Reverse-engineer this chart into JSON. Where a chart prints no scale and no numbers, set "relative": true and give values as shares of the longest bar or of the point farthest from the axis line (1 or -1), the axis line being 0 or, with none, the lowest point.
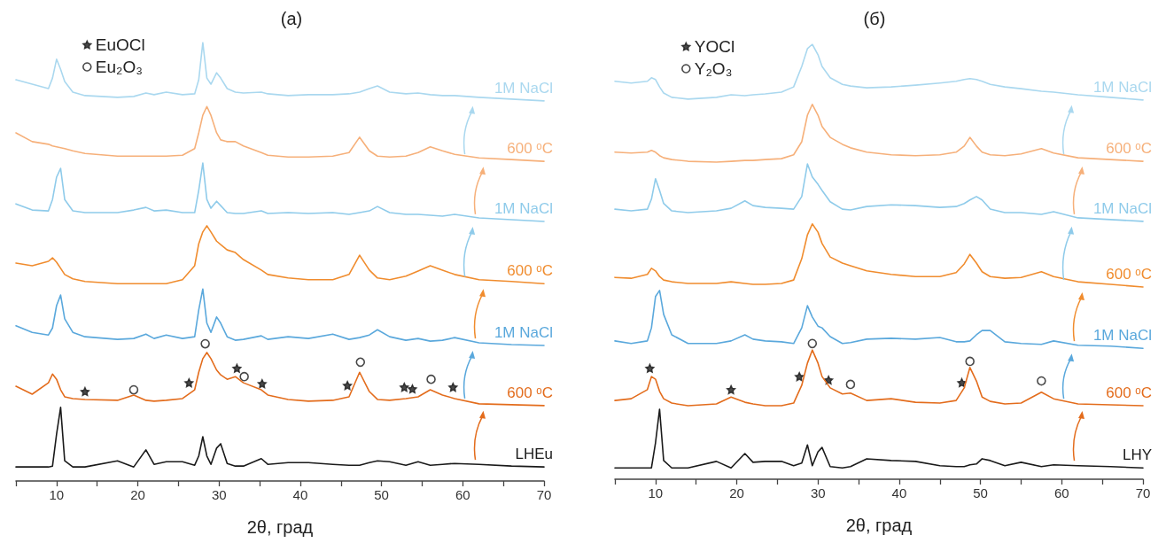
{
  "chart_data": [
    {
      "type": "line",
      "title": "(a)",
      "xlabel": "2θ, град",
      "relative": true,
      "xlim": [
        5,
        70
      ],
      "xticks": [
        {
          "value": 5,
          "label": null
        },
        10,
        {
          "value": 15,
          "label": null
        },
        20,
        {
          "value": 25,
          "label": null
        },
        30,
        {
          "value": 35,
          "label": null
        },
        40,
        {
          "value": 45,
          "label": null
        },
        50,
        {
          "value": 55,
          "label": null
        },
        60,
        {
          "value": 65,
          "label": null
        },
        70
      ],
      "grid": false,
      "legend": "top left",
      "x": [
        5,
        7,
        9,
        9.5,
        10,
        10.5,
        11,
        12,
        13.5,
        17.5,
        19.5,
        21,
        22,
        23.5,
        25.5,
        27,
        27.5,
        28,
        28.5,
        29,
        29.7,
        30.2,
        31,
        32,
        33,
        35.2,
        36,
        38.5,
        41,
        44,
        46,
        47.3,
        48.5,
        49.5,
        51,
        53,
        54.5,
        56,
        57.5,
        59,
        62,
        66,
        70
      ],
      "series": [
        {
          "name": "LHEu",
          "color": "#1a1a1a",
          "values": [
            0.032,
            0.032,
            0.032,
            0.034,
            0.107,
            0.168,
            0.046,
            0.032,
            0.032,
            0.046,
            0.032,
            0.071,
            0.038,
            0.044,
            0.044,
            0.036,
            0.057,
            0.101,
            0.057,
            0.038,
            0.075,
            0.085,
            0.04,
            0.034,
            0.034,
            0.051,
            0.038,
            0.042,
            0.042,
            0.038,
            0.036,
            0.036,
            0.042,
            0.046,
            0.044,
            0.036,
            0.044,
            0.036,
            0.038,
            0.04,
            0.038,
            0.034,
            0.032
          ]
        },
        {
          "name": "600 ᵒC",
          "color": "#e36c1c",
          "values": [
            0.216,
            0.198,
            0.224,
            0.244,
            0.232,
            0.208,
            0.192,
            0.188,
            0.186,
            0.184,
            0.196,
            0.184,
            0.182,
            0.184,
            0.188,
            0.208,
            0.248,
            0.279,
            0.293,
            0.279,
            0.253,
            0.242,
            0.232,
            0.238,
            0.224,
            0.208,
            0.196,
            0.186,
            0.182,
            0.184,
            0.192,
            0.248,
            0.204,
            0.186,
            0.184,
            0.188,
            0.192,
            0.208,
            0.196,
            0.188,
            0.176,
            0.174,
            0.172
          ]
        },
        {
          "name": "1M NaCl",
          "color": "#5aa8dc",
          "values": [
            0.354,
            0.339,
            0.333,
            0.349,
            0.4,
            0.424,
            0.37,
            0.339,
            0.329,
            0.323,
            0.325,
            0.335,
            0.325,
            0.333,
            0.325,
            0.329,
            0.39,
            0.438,
            0.36,
            0.339,
            0.374,
            0.36,
            0.329,
            0.321,
            0.323,
            0.331,
            0.323,
            0.329,
            0.325,
            0.335,
            0.323,
            0.327,
            0.333,
            0.345,
            0.329,
            0.321,
            0.325,
            0.319,
            0.321,
            0.327,
            0.315,
            0.311,
            0.309
          ]
        },
        {
          "name": "600 ᵒC",
          "color": "#f08c2e",
          "values": [
            0.497,
            0.491,
            0.501,
            0.509,
            0.499,
            0.485,
            0.471,
            0.461,
            0.455,
            0.45,
            0.45,
            0.45,
            0.45,
            0.45,
            0.459,
            0.491,
            0.541,
            0.568,
            0.582,
            0.568,
            0.547,
            0.539,
            0.527,
            0.521,
            0.505,
            0.481,
            0.471,
            0.463,
            0.459,
            0.459,
            0.471,
            0.515,
            0.481,
            0.463,
            0.459,
            0.467,
            0.479,
            0.491,
            0.481,
            0.471,
            0.459,
            0.455,
            0.45
          ]
        },
        {
          "name": "1M NaCl",
          "color": "#8fcbea",
          "values": [
            0.632,
            0.618,
            0.616,
            0.642,
            0.693,
            0.713,
            0.642,
            0.616,
            0.612,
            0.612,
            0.618,
            0.624,
            0.616,
            0.618,
            0.612,
            0.612,
            0.663,
            0.725,
            0.642,
            0.622,
            0.638,
            0.628,
            0.612,
            0.61,
            0.61,
            0.616,
            0.61,
            0.612,
            0.61,
            0.612,
            0.608,
            0.612,
            0.616,
            0.626,
            0.612,
            0.608,
            0.608,
            0.606,
            0.604,
            0.608,
            0.6,
            0.596,
            0.592
          ]
        },
        {
          "name": "600 ᵒC",
          "color": "#f6b07a",
          "values": [
            0.794,
            0.774,
            0.768,
            0.764,
            0.762,
            0.76,
            0.758,
            0.753,
            0.747,
            0.741,
            0.741,
            0.741,
            0.741,
            0.741,
            0.743,
            0.758,
            0.794,
            0.834,
            0.854,
            0.834,
            0.794,
            0.778,
            0.774,
            0.774,
            0.764,
            0.749,
            0.743,
            0.739,
            0.739,
            0.741,
            0.749,
            0.784,
            0.753,
            0.741,
            0.739,
            0.741,
            0.749,
            0.762,
            0.753,
            0.745,
            0.737,
            0.733,
            0.729
          ]
        },
        {
          "name": "1M NaCl",
          "color": "#aad8ef",
          "values": [
            0.915,
            0.905,
            0.895,
            0.919,
            0.962,
            0.939,
            0.911,
            0.887,
            0.879,
            0.875,
            0.877,
            0.885,
            0.881,
            0.887,
            0.881,
            0.883,
            0.915,
            1,
            0.919,
            0.905,
            0.931,
            0.919,
            0.895,
            0.887,
            0.885,
            0.887,
            0.883,
            0.879,
            0.881,
            0.881,
            0.883,
            0.887,
            0.895,
            0.901,
            0.887,
            0.883,
            0.885,
            0.881,
            0.879,
            0.879,
            0.875,
            0.871,
            0.867
          ]
        },
        {
          "name": "EuOCl",
          "type": "scatter",
          "marker": "star",
          "color": "#1a1a1a",
          "x": [
            13.5,
            26.3,
            32.2,
            35.3,
            45.8,
            52.8,
            53.8,
            58.8
          ],
          "values": [
            0.204,
            0.224,
            0.257,
            0.222,
            0.218,
            0.214,
            0.21,
            0.214
          ]
        },
        {
          "name": "Eu₂O₃",
          "type": "scatter",
          "marker": "circle",
          "color": "#1a1a1a",
          "x": [
            19.5,
            28.3,
            33.1,
            47.4,
            56.1
          ],
          "values": [
            0.208,
            0.313,
            0.238,
            0.271,
            0.232
          ]
        }
      ]
    },
    {
      "type": "line",
      "title": "(б)",
      "xlabel": "2θ, град",
      "relative": true,
      "xlim": [
        5,
        70
      ],
      "xticks": [
        {
          "value": 5,
          "label": null
        },
        10,
        {
          "value": 15,
          "label": null
        },
        20,
        {
          "value": 25,
          "label": null
        },
        30,
        {
          "value": 35,
          "label": null
        },
        40,
        {
          "value": 45,
          "label": null
        },
        50,
        {
          "value": 55,
          "label": null
        },
        60,
        {
          "value": 65,
          "label": null
        },
        70
      ],
      "grid": false,
      "legend": "top left",
      "x": [
        5,
        7,
        9,
        9.5,
        10,
        10.5,
        11,
        12,
        14,
        17.5,
        19.3,
        21,
        22,
        23.5,
        25.5,
        27,
        28,
        28.7,
        29.3,
        30,
        30.5,
        31.5,
        33,
        34,
        36,
        39,
        42,
        45,
        47,
        48,
        48.7,
        49.5,
        50.2,
        51.2,
        53,
        55,
        57.5,
        59,
        62,
        66,
        70
      ],
      "series": [
        {
          "name": "LHY",
          "color": "#1a1a1a",
          "values": [
            0.026,
            0.026,
            0.026,
            0.026,
            0.084,
            0.161,
            0.043,
            0.026,
            0.026,
            0.041,
            0.026,
            0.059,
            0.039,
            0.041,
            0.041,
            0.031,
            0.037,
            0.079,
            0.031,
            0.063,
            0.073,
            0.029,
            0.026,
            0.029,
            0.047,
            0.043,
            0.041,
            0.031,
            0.029,
            0.029,
            0.033,
            0.035,
            0.047,
            0.043,
            0.031,
            0.039,
            0.029,
            0.033,
            0.031,
            0.029,
            0.026
          ]
        },
        {
          "name": "600 ᵒC",
          "color": "#e36c1c",
          "values": [
            0.181,
            0.185,
            0.206,
            0.236,
            0.23,
            0.202,
            0.185,
            0.175,
            0.169,
            0.173,
            0.189,
            0.177,
            0.173,
            0.169,
            0.169,
            0.175,
            0.216,
            0.267,
            0.297,
            0.267,
            0.236,
            0.21,
            0.196,
            0.198,
            0.181,
            0.185,
            0.177,
            0.175,
            0.181,
            0.21,
            0.257,
            0.226,
            0.189,
            0.179,
            0.173,
            0.175,
            0.2,
            0.185,
            0.173,
            0.171,
            0.169
          ]
        },
        {
          "name": "1M NaCl",
          "color": "#5aa8dc",
          "values": [
            0.318,
            0.312,
            0.318,
            0.348,
            0.42,
            0.434,
            0.379,
            0.332,
            0.312,
            0.312,
            0.318,
            0.332,
            0.322,
            0.318,
            0.316,
            0.312,
            0.348,
            0.399,
            0.373,
            0.352,
            0.348,
            0.328,
            0.312,
            0.314,
            0.322,
            0.324,
            0.322,
            0.326,
            0.316,
            0.316,
            0.318,
            0.332,
            0.342,
            0.342,
            0.316,
            0.312,
            0.31,
            0.318,
            0.308,
            0.306,
            0.301
          ]
        },
        {
          "name": "600 ᵒC",
          "color": "#f08c2e",
          "values": [
            0.464,
            0.462,
            0.471,
            0.485,
            0.479,
            0.466,
            0.458,
            0.454,
            0.45,
            0.45,
            0.454,
            0.45,
            0.448,
            0.448,
            0.45,
            0.458,
            0.507,
            0.562,
            0.587,
            0.568,
            0.542,
            0.511,
            0.497,
            0.491,
            0.479,
            0.471,
            0.466,
            0.466,
            0.475,
            0.495,
            0.517,
            0.497,
            0.477,
            0.466,
            0.462,
            0.464,
            0.477,
            0.466,
            0.454,
            0.448,
            0.442
          ]
        },
        {
          "name": "1M NaCl",
          "color": "#8fcbea",
          "values": [
            0.621,
            0.617,
            0.621,
            0.644,
            0.691,
            0.664,
            0.634,
            0.617,
            0.613,
            0.617,
            0.623,
            0.64,
            0.629,
            0.625,
            0.623,
            0.621,
            0.65,
            0.725,
            0.695,
            0.678,
            0.664,
            0.638,
            0.621,
            0.619,
            0.627,
            0.631,
            0.629,
            0.625,
            0.627,
            0.634,
            0.642,
            0.65,
            0.642,
            0.621,
            0.613,
            0.613,
            0.609,
            0.615,
            0.601,
            0.597,
            0.593
          ]
        },
        {
          "name": "600 ᵒC",
          "color": "#f6b07a",
          "values": [
            0.752,
            0.75,
            0.752,
            0.756,
            0.752,
            0.744,
            0.739,
            0.735,
            0.731,
            0.729,
            0.731,
            0.733,
            0.733,
            0.735,
            0.737,
            0.746,
            0.776,
            0.837,
            0.862,
            0.837,
            0.811,
            0.786,
            0.77,
            0.762,
            0.752,
            0.746,
            0.744,
            0.746,
            0.752,
            0.766,
            0.786,
            0.766,
            0.752,
            0.746,
            0.744,
            0.748,
            0.76,
            0.75,
            0.739,
            0.735,
            0.731
          ]
        },
        {
          "name": "1M NaCl",
          "color": "#aad8ef",
          "values": [
            0.915,
            0.911,
            0.915,
            0.923,
            0.919,
            0.902,
            0.888,
            0.878,
            0.874,
            0.878,
            0.884,
            0.882,
            0.884,
            0.886,
            0.89,
            0.902,
            0.949,
            0.99,
            1,
            0.976,
            0.949,
            0.923,
            0.908,
            0.904,
            0.9,
            0.902,
            0.906,
            0.911,
            0.915,
            0.919,
            0.921,
            0.919,
            0.915,
            0.908,
            0.902,
            0.898,
            0.892,
            0.89,
            0.884,
            0.878,
            0.872
          ]
        },
        {
          "name": "YOCl",
          "type": "scatter",
          "marker": "star",
          "color": "#1a1a1a",
          "x": [
            9.3,
            19.3,
            27.7,
            31.3,
            47.7
          ],
          "values": [
            0.255,
            0.206,
            0.236,
            0.228,
            0.222
          ]
        },
        {
          "name": "Y₂O₃",
          "type": "scatter",
          "marker": "circle",
          "color": "#1a1a1a",
          "x": [
            29.3,
            34,
            48.7,
            57.5
          ],
          "values": [
            0.312,
            0.218,
            0.271,
            0.226
          ]
        }
      ]
    }
  ]
}
